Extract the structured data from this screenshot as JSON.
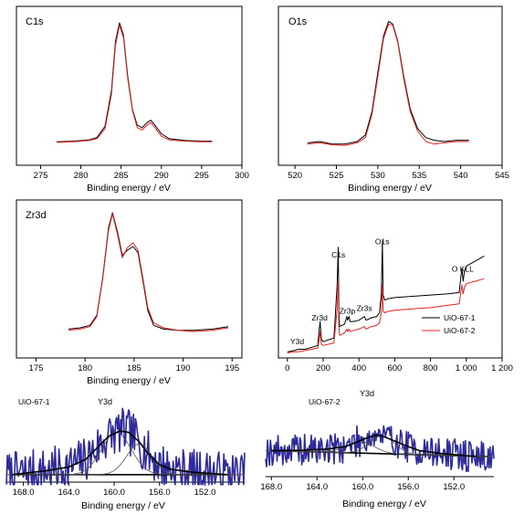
{
  "figure": {
    "colors": {
      "black": "#000000",
      "red": "#e8201f",
      "noise": "#2c2a9c",
      "fit": "#000000",
      "component": "#555555"
    }
  },
  "chart_data": [
    {
      "id": "c1s",
      "type": "line",
      "panel_label": "C1s",
      "xlabel": "Binding energy / eV",
      "ylabel": "",
      "xlim": [
        272,
        300
      ],
      "ylim": [
        0,
        1
      ],
      "x_ticks": [
        275,
        280,
        285,
        290,
        295,
        300
      ],
      "x_tick_labels": [
        "275",
        "280",
        "285",
        "290",
        "295",
        "300"
      ],
      "series": [
        {
          "color": "black",
          "x": [
            277,
            279,
            281,
            282,
            283,
            283.8,
            284.3,
            284.8,
            285.3,
            285.8,
            286.4,
            287,
            287.6,
            288.2,
            288.7,
            289.2,
            290,
            291,
            293,
            295,
            296.3
          ],
          "y": [
            0.035,
            0.04,
            0.05,
            0.07,
            0.16,
            0.45,
            0.85,
            1.0,
            0.9,
            0.58,
            0.3,
            0.17,
            0.15,
            0.19,
            0.21,
            0.17,
            0.1,
            0.06,
            0.045,
            0.04,
            0.04
          ]
        },
        {
          "color": "red",
          "x": [
            277,
            279,
            281,
            282,
            283,
            283.8,
            284.3,
            284.8,
            285.3,
            285.8,
            286.4,
            287,
            287.6,
            288.2,
            288.7,
            289.2,
            290,
            291,
            293,
            295,
            296.3
          ],
          "y": [
            0.03,
            0.035,
            0.045,
            0.06,
            0.14,
            0.42,
            0.82,
            0.98,
            0.88,
            0.56,
            0.29,
            0.15,
            0.13,
            0.17,
            0.19,
            0.15,
            0.08,
            0.05,
            0.04,
            0.035,
            0.035
          ]
        }
      ]
    },
    {
      "id": "o1s",
      "type": "line",
      "panel_label": "O1s",
      "xlabel": "Binding energy / eV",
      "ylabel": "",
      "xlim": [
        518,
        545
      ],
      "ylim": [
        0,
        1
      ],
      "x_ticks": [
        520,
        525,
        530,
        535,
        540,
        545
      ],
      "x_tick_labels": [
        "520",
        "525",
        "530",
        "535",
        "540",
        "545"
      ],
      "series": [
        {
          "color": "black",
          "x": [
            521.5,
            523,
            524.5,
            526,
            527.5,
            528.5,
            529.3,
            530,
            530.7,
            531.3,
            531.8,
            532.4,
            533.1,
            533.9,
            534.8,
            535.8,
            536.8,
            538,
            539.5,
            541
          ],
          "y": [
            0.06,
            0.07,
            0.05,
            0.05,
            0.07,
            0.12,
            0.3,
            0.6,
            0.88,
            0.99,
            0.97,
            0.84,
            0.58,
            0.32,
            0.17,
            0.1,
            0.08,
            0.07,
            0.08,
            0.08
          ]
        },
        {
          "color": "red",
          "x": [
            521.5,
            523,
            524.5,
            526,
            527.5,
            528.5,
            529.3,
            530,
            530.7,
            531.3,
            531.8,
            532.4,
            533.1,
            533.9,
            534.8,
            535.8,
            536.8,
            538,
            539.5,
            541
          ],
          "y": [
            0.05,
            0.06,
            0.045,
            0.04,
            0.06,
            0.1,
            0.28,
            0.57,
            0.86,
            0.97,
            0.96,
            0.83,
            0.56,
            0.3,
            0.15,
            0.07,
            0.05,
            0.06,
            0.07,
            0.07
          ]
        }
      ]
    },
    {
      "id": "zr3d",
      "type": "line",
      "panel_label": "Zr3d",
      "xlabel": "Binding energy / eV",
      "ylabel": "",
      "xlim": [
        173,
        196
      ],
      "ylim": [
        0,
        1
      ],
      "x_ticks": [
        175,
        180,
        185,
        190,
        195
      ],
      "x_tick_labels": [
        "175",
        "180",
        "185",
        "190",
        "195"
      ],
      "series": [
        {
          "color": "black",
          "x": [
            178.3,
            179.5,
            180.5,
            181.2,
            181.8,
            182.4,
            182.8,
            183.3,
            183.8,
            184.3,
            184.9,
            185.4,
            185.9,
            186.4,
            187,
            188,
            189.5,
            191,
            193,
            194.6
          ],
          "y": [
            0.07,
            0.08,
            0.1,
            0.18,
            0.48,
            0.88,
            1.0,
            0.85,
            0.66,
            0.7,
            0.73,
            0.68,
            0.46,
            0.22,
            0.1,
            0.07,
            0.06,
            0.06,
            0.07,
            0.09
          ]
        },
        {
          "color": "red",
          "x": [
            178.3,
            179.5,
            180.5,
            181.2,
            181.8,
            182.4,
            182.8,
            183.3,
            183.8,
            184.3,
            184.9,
            185.4,
            185.9,
            186.4,
            187,
            188,
            189.5,
            191,
            193,
            194.6
          ],
          "y": [
            0.06,
            0.07,
            0.09,
            0.17,
            0.47,
            0.86,
            0.99,
            0.83,
            0.64,
            0.72,
            0.76,
            0.7,
            0.48,
            0.24,
            0.12,
            0.08,
            0.06,
            0.05,
            0.06,
            0.08
          ]
        }
      ]
    },
    {
      "id": "survey",
      "type": "line",
      "xlabel": "",
      "ylabel": "",
      "xlim": [
        -50,
        1200
      ],
      "ylim": [
        0,
        1
      ],
      "x_ticks": [
        0,
        200,
        400,
        600,
        800,
        1000,
        1200
      ],
      "x_tick_labels": [
        "0",
        "200",
        "400",
        "600",
        "800",
        "1 000",
        "1 200"
      ],
      "annotations": [
        {
          "text": "Y3d",
          "at": 55
        },
        {
          "text": "Zr3d",
          "at": 180
        },
        {
          "text": "Zr3p",
          "at": 335
        },
        {
          "text": "Zr3s",
          "at": 430
        },
        {
          "text": "C1s",
          "at": 285
        },
        {
          "text": "O1s",
          "at": 530
        },
        {
          "text": "O KLL",
          "at": 980
        }
      ],
      "legend": [
        "UiO-67-1",
        "UiO-67-2"
      ],
      "legend_position": "bottom-right",
      "series": [
        {
          "name": "UiO-67-1",
          "color": "black",
          "x": [
            0,
            40,
            60,
            100,
            170,
            178,
            183,
            190,
            200,
            260,
            278,
            284,
            288,
            292,
            320,
            332,
            336,
            345,
            350,
            370,
            400,
            430,
            440,
            470,
            500,
            515,
            525,
            531,
            535,
            545,
            560,
            600,
            700,
            800,
            900,
            960,
            970,
            976,
            982,
            990,
            1000,
            1050,
            1100
          ],
          "y": [
            0.02,
            0.03,
            0.04,
            0.04,
            0.07,
            0.2,
            0.26,
            0.12,
            0.1,
            0.13,
            0.55,
            0.85,
            0.35,
            0.22,
            0.24,
            0.3,
            0.27,
            0.3,
            0.26,
            0.26,
            0.27,
            0.3,
            0.27,
            0.29,
            0.3,
            0.33,
            0.48,
            0.9,
            0.47,
            0.43,
            0.44,
            0.45,
            0.46,
            0.47,
            0.48,
            0.49,
            0.62,
            0.68,
            0.58,
            0.66,
            0.7,
            0.74,
            0.78
          ]
        },
        {
          "name": "UiO-67-2",
          "color": "red",
          "x": [
            0,
            40,
            60,
            100,
            170,
            178,
            183,
            190,
            200,
            260,
            278,
            284,
            288,
            292,
            320,
            332,
            336,
            345,
            350,
            370,
            400,
            430,
            440,
            470,
            500,
            515,
            525,
            531,
            535,
            545,
            560,
            600,
            700,
            800,
            900,
            960,
            970,
            976,
            982,
            990,
            1000,
            1050,
            1100
          ],
          "y": [
            0.01,
            0.02,
            0.02,
            0.03,
            0.05,
            0.12,
            0.18,
            0.08,
            0.07,
            0.09,
            0.36,
            0.58,
            0.22,
            0.15,
            0.17,
            0.2,
            0.18,
            0.2,
            0.18,
            0.19,
            0.2,
            0.22,
            0.2,
            0.22,
            0.23,
            0.25,
            0.33,
            0.55,
            0.34,
            0.33,
            0.34,
            0.35,
            0.36,
            0.37,
            0.39,
            0.4,
            0.5,
            0.55,
            0.48,
            0.53,
            0.56,
            0.58,
            0.6
          ]
        }
      ]
    },
    {
      "id": "y3d-1",
      "type": "line",
      "sample_label": "UiO-67-1",
      "peak_label": "Y3d",
      "xlabel": "Binding energy / eV",
      "ylabel": "",
      "xlim": [
        169.5,
        148.5
      ],
      "ylim": [
        0,
        1
      ],
      "x_ticks": [
        168,
        164,
        160,
        156,
        152
      ],
      "x_tick_labels": [
        "168.0",
        "164.0",
        "160.0",
        "156.0",
        "152.0"
      ],
      "noise_seed": 7,
      "noise_amp": 0.55,
      "fit_envelope": {
        "x": [
          169,
          166,
          164,
          162.5,
          161.5,
          160.5,
          159.5,
          158.7,
          157.8,
          157,
          156,
          155,
          153,
          150
        ],
        "y": [
          0.05,
          0.1,
          0.15,
          0.25,
          0.4,
          0.55,
          0.62,
          0.6,
          0.48,
          0.32,
          0.18,
          0.12,
          0.08,
          0.05
        ]
      },
      "components": [
        {
          "center": 159.8,
          "height": 0.55,
          "width": 1.3
        },
        {
          "center": 157.8,
          "height": 0.4,
          "width": 1.1
        }
      ],
      "baseline": [
        [
          169,
          0.05
        ],
        [
          150,
          0.05
        ]
      ]
    },
    {
      "id": "y3d-2",
      "type": "line",
      "sample_label": "UiO-67-2",
      "peak_label": "Y3d",
      "xlabel": "Binding energy / eV",
      "ylabel": "",
      "xlim": [
        168.5,
        148.5
      ],
      "ylim": [
        0,
        1
      ],
      "x_ticks": [
        168,
        164,
        160,
        156,
        152
      ],
      "x_tick_labels": [
        "168.0",
        "164.0",
        "160.0",
        "156.0",
        "152.0"
      ],
      "noise_seed": 19,
      "noise_amp": 0.5,
      "fit_envelope": {
        "x": [
          168,
          165,
          163,
          161.5,
          160.5,
          159.5,
          158.7,
          158,
          157,
          156,
          155,
          153,
          150
        ],
        "y": [
          0.35,
          0.36,
          0.38,
          0.42,
          0.5,
          0.58,
          0.62,
          0.58,
          0.5,
          0.42,
          0.35,
          0.3,
          0.25
        ]
      },
      "components": [
        {
          "center": 160.2,
          "height": 0.2,
          "width": 1.2
        },
        {
          "center": 158.3,
          "height": 0.3,
          "width": 1.1
        }
      ],
      "baseline": [
        [
          168,
          0.35
        ],
        [
          149,
          0.25
        ]
      ]
    }
  ]
}
